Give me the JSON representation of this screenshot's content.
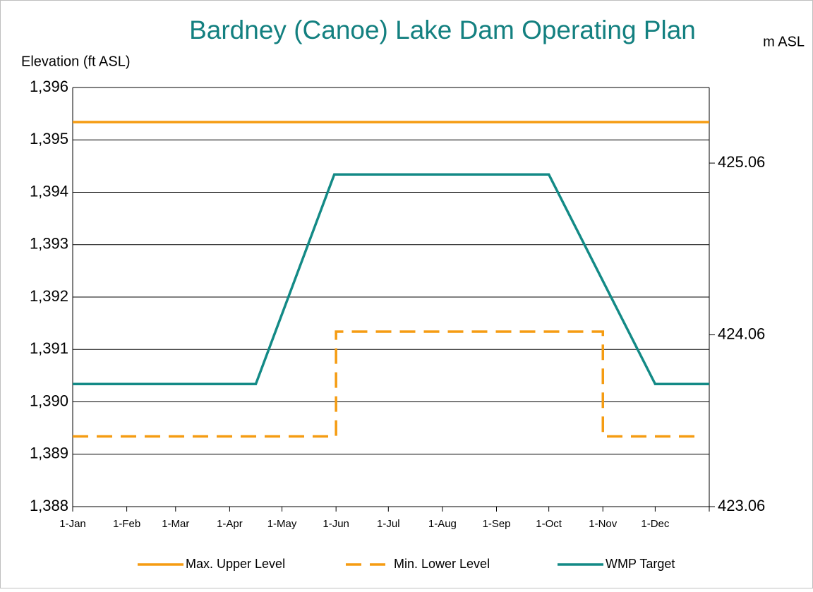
{
  "chart_data": {
    "type": "line",
    "title": "Bardney (Canoe) Lake Dam Operating Plan",
    "ylabel": "Elevation (ft ASL)",
    "y2label": "m ASL",
    "xlim": [
      0,
      365
    ],
    "xticks": [
      {
        "value": 0,
        "label": "1-Jan"
      },
      {
        "value": 31,
        "label": "1-Feb"
      },
      {
        "value": 59,
        "label": "1-Mar"
      },
      {
        "value": 90,
        "label": "1-Apr"
      },
      {
        "value": 120,
        "label": "1-May"
      },
      {
        "value": 151,
        "label": "1-Jun"
      },
      {
        "value": 181,
        "label": "1-Jul"
      },
      {
        "value": 212,
        "label": "1-Aug"
      },
      {
        "value": 243,
        "label": "1-Sep"
      },
      {
        "value": 273,
        "label": "1-Oct"
      },
      {
        "value": 304,
        "label": "1-Nov"
      },
      {
        "value": 334,
        "label": "1-Dec"
      }
    ],
    "ylim": [
      1388,
      1396
    ],
    "yticks": [
      {
        "value": 1388,
        "label": "1,388"
      },
      {
        "value": 1389,
        "label": "1,389"
      },
      {
        "value": 1390,
        "label": "1,390"
      },
      {
        "value": 1391,
        "label": "1,391"
      },
      {
        "value": 1392,
        "label": "1,392"
      },
      {
        "value": 1393,
        "label": "1,393"
      },
      {
        "value": 1394,
        "label": "1,394"
      },
      {
        "value": 1395,
        "label": "1,395"
      },
      {
        "value": 1396,
        "label": "1,396"
      }
    ],
    "y2lim": [
      423.06,
      425.5
    ],
    "y2ticks": [
      423.06,
      424.06,
      425.06
    ],
    "grid": true,
    "legend": "bottom",
    "series": [
      {
        "name": "Max. Upper Level",
        "color": "#f59c12",
        "line_style": "solid",
        "x": [
          0,
          365
        ],
        "values": [
          1395.34,
          1395.34
        ]
      },
      {
        "name": "Min. Lower Level",
        "color": "#f59c12",
        "line_style": "dashed",
        "x": [
          0,
          151,
          151,
          304,
          304,
          359
        ],
        "values": [
          1389.34,
          1389.34,
          1391.34,
          1391.34,
          1389.34,
          1389.34
        ]
      },
      {
        "name": "WMP Target",
        "color": "#138a86",
        "line_style": "solid",
        "x": [
          0,
          105,
          150,
          273,
          334,
          365
        ],
        "values": [
          1390.34,
          1390.34,
          1394.34,
          1394.34,
          1390.34,
          1390.34
        ]
      }
    ]
  }
}
